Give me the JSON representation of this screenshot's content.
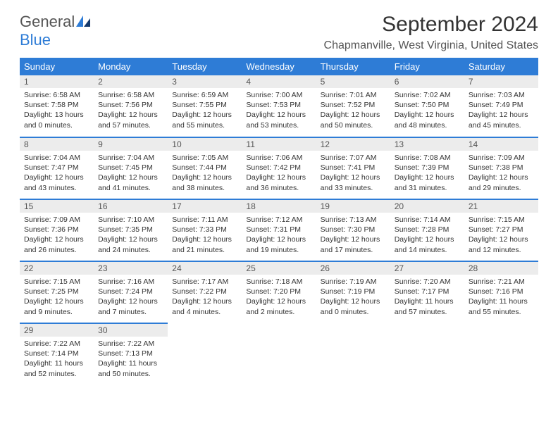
{
  "logo": {
    "general": "General",
    "blue": "Blue"
  },
  "title": "September 2024",
  "location": "Chapmanville, West Virginia, United States",
  "colors": {
    "header_bg": "#2e7cd6",
    "header_text": "#ffffff",
    "daynum_bg": "#ececec",
    "border": "#2e7cd6",
    "logo_blue": "#2e7cd6",
    "logo_dark": "#15396b"
  },
  "weekdays": [
    "Sunday",
    "Monday",
    "Tuesday",
    "Wednesday",
    "Thursday",
    "Friday",
    "Saturday"
  ],
  "days": [
    {
      "n": "1",
      "sunrise": "6:58 AM",
      "sunset": "7:58 PM",
      "dl": "13 hours and 0 minutes."
    },
    {
      "n": "2",
      "sunrise": "6:58 AM",
      "sunset": "7:56 PM",
      "dl": "12 hours and 57 minutes."
    },
    {
      "n": "3",
      "sunrise": "6:59 AM",
      "sunset": "7:55 PM",
      "dl": "12 hours and 55 minutes."
    },
    {
      "n": "4",
      "sunrise": "7:00 AM",
      "sunset": "7:53 PM",
      "dl": "12 hours and 53 minutes."
    },
    {
      "n": "5",
      "sunrise": "7:01 AM",
      "sunset": "7:52 PM",
      "dl": "12 hours and 50 minutes."
    },
    {
      "n": "6",
      "sunrise": "7:02 AM",
      "sunset": "7:50 PM",
      "dl": "12 hours and 48 minutes."
    },
    {
      "n": "7",
      "sunrise": "7:03 AM",
      "sunset": "7:49 PM",
      "dl": "12 hours and 45 minutes."
    },
    {
      "n": "8",
      "sunrise": "7:04 AM",
      "sunset": "7:47 PM",
      "dl": "12 hours and 43 minutes."
    },
    {
      "n": "9",
      "sunrise": "7:04 AM",
      "sunset": "7:45 PM",
      "dl": "12 hours and 41 minutes."
    },
    {
      "n": "10",
      "sunrise": "7:05 AM",
      "sunset": "7:44 PM",
      "dl": "12 hours and 38 minutes."
    },
    {
      "n": "11",
      "sunrise": "7:06 AM",
      "sunset": "7:42 PM",
      "dl": "12 hours and 36 minutes."
    },
    {
      "n": "12",
      "sunrise": "7:07 AM",
      "sunset": "7:41 PM",
      "dl": "12 hours and 33 minutes."
    },
    {
      "n": "13",
      "sunrise": "7:08 AM",
      "sunset": "7:39 PM",
      "dl": "12 hours and 31 minutes."
    },
    {
      "n": "14",
      "sunrise": "7:09 AM",
      "sunset": "7:38 PM",
      "dl": "12 hours and 29 minutes."
    },
    {
      "n": "15",
      "sunrise": "7:09 AM",
      "sunset": "7:36 PM",
      "dl": "12 hours and 26 minutes."
    },
    {
      "n": "16",
      "sunrise": "7:10 AM",
      "sunset": "7:35 PM",
      "dl": "12 hours and 24 minutes."
    },
    {
      "n": "17",
      "sunrise": "7:11 AM",
      "sunset": "7:33 PM",
      "dl": "12 hours and 21 minutes."
    },
    {
      "n": "18",
      "sunrise": "7:12 AM",
      "sunset": "7:31 PM",
      "dl": "12 hours and 19 minutes."
    },
    {
      "n": "19",
      "sunrise": "7:13 AM",
      "sunset": "7:30 PM",
      "dl": "12 hours and 17 minutes."
    },
    {
      "n": "20",
      "sunrise": "7:14 AM",
      "sunset": "7:28 PM",
      "dl": "12 hours and 14 minutes."
    },
    {
      "n": "21",
      "sunrise": "7:15 AM",
      "sunset": "7:27 PM",
      "dl": "12 hours and 12 minutes."
    },
    {
      "n": "22",
      "sunrise": "7:15 AM",
      "sunset": "7:25 PM",
      "dl": "12 hours and 9 minutes."
    },
    {
      "n": "23",
      "sunrise": "7:16 AM",
      "sunset": "7:24 PM",
      "dl": "12 hours and 7 minutes."
    },
    {
      "n": "24",
      "sunrise": "7:17 AM",
      "sunset": "7:22 PM",
      "dl": "12 hours and 4 minutes."
    },
    {
      "n": "25",
      "sunrise": "7:18 AM",
      "sunset": "7:20 PM",
      "dl": "12 hours and 2 minutes."
    },
    {
      "n": "26",
      "sunrise": "7:19 AM",
      "sunset": "7:19 PM",
      "dl": "12 hours and 0 minutes."
    },
    {
      "n": "27",
      "sunrise": "7:20 AM",
      "sunset": "7:17 PM",
      "dl": "11 hours and 57 minutes."
    },
    {
      "n": "28",
      "sunrise": "7:21 AM",
      "sunset": "7:16 PM",
      "dl": "11 hours and 55 minutes."
    },
    {
      "n": "29",
      "sunrise": "7:22 AM",
      "sunset": "7:14 PM",
      "dl": "11 hours and 52 minutes."
    },
    {
      "n": "30",
      "sunrise": "7:22 AM",
      "sunset": "7:13 PM",
      "dl": "11 hours and 50 minutes."
    }
  ],
  "labels": {
    "sunrise": "Sunrise: ",
    "sunset": "Sunset: ",
    "daylight": "Daylight: "
  },
  "grid": {
    "rows": 5,
    "cols": 7,
    "start_weekday": 0,
    "total_days": 30
  }
}
